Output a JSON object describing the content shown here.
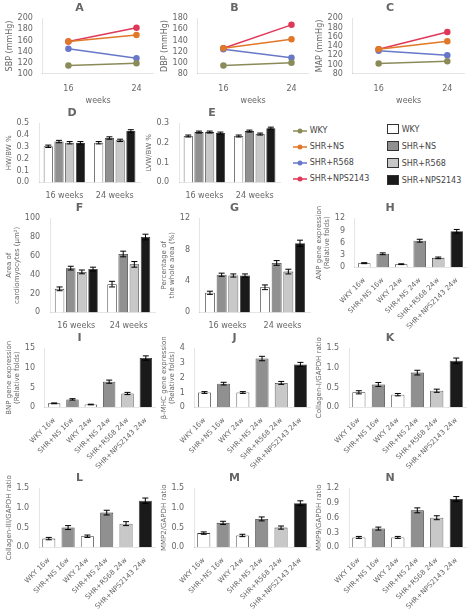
{
  "chart_data": [
    {
      "type": "line",
      "title": "A",
      "xlabel": "weeks",
      "ylabel": "SBP (mmHg)",
      "x": [
        16,
        24
      ],
      "xlim": [
        13,
        26
      ],
      "xticks": [
        16,
        24
      ],
      "ylim": [
        100,
        200
      ],
      "yticks": [
        100,
        120,
        140,
        160,
        180,
        200
      ],
      "grid": false,
      "marker": "circle",
      "legend": "right",
      "series": [
        {
          "name": "WKY",
          "color": "#8B8B5A",
          "values": [
            115,
            119
          ]
        },
        {
          "name": "SHR+NS",
          "color": "#E07828",
          "values": [
            158,
            170
          ]
        },
        {
          "name": "SHR+R568",
          "color": "#6878C8",
          "values": [
            145,
            128
          ]
        },
        {
          "name": "SHR+NPS2143",
          "color": "#E03858",
          "values": [
            158,
            183
          ]
        }
      ]
    },
    {
      "type": "line",
      "title": "B",
      "xlabel": "weeks",
      "ylabel": "DBP (mmHg)",
      "x": [
        16,
        24
      ],
      "xlim": [
        13,
        26
      ],
      "xticks": [
        16,
        24
      ],
      "ylim": [
        80,
        180
      ],
      "yticks": [
        80,
        100,
        120,
        140,
        160,
        180
      ],
      "grid": false,
      "marker": "circle",
      "series": [
        {
          "color": "#8B8B5A",
          "values": [
            95,
            100
          ]
        },
        {
          "color": "#E07828",
          "values": [
            126,
            142
          ]
        },
        {
          "color": "#6878C8",
          "values": [
            124,
            109
          ]
        },
        {
          "color": "#E03858",
          "values": [
            126,
            168
          ]
        }
      ]
    },
    {
      "type": "line",
      "title": "C",
      "xlabel": "weeks",
      "ylabel": "MAP (mmHg)",
      "x": [
        16,
        24
      ],
      "xlim": [
        13,
        26
      ],
      "xticks": [
        16,
        24
      ],
      "ylim": [
        80,
        200
      ],
      "yticks": [
        80,
        100,
        120,
        140,
        160,
        180,
        200
      ],
      "grid": false,
      "marker": "circle",
      "series": [
        {
          "color": "#8B8B5A",
          "values": [
            102,
            107
          ]
        },
        {
          "color": "#E07828",
          "values": [
            133,
            150
          ]
        },
        {
          "color": "#6878C8",
          "values": [
            130,
            120
          ]
        },
        {
          "color": "#E03858",
          "values": [
            133,
            170
          ]
        }
      ]
    },
    {
      "type": "bar",
      "title": "D",
      "ylabel": "HW/BW %",
      "categories": [
        "16 weeks",
        "24 weeks"
      ],
      "ylim": [
        0,
        0.5
      ],
      "yticks": [
        {
          "value": 0,
          "label": "0.0"
        },
        0.1,
        0.2,
        0.3,
        0.4,
        0.5
      ],
      "grid": false,
      "legend": "right",
      "series": [
        {
          "name": "WKY",
          "color": "#FFFFFF",
          "values": [
            0.305,
            0.335
          ],
          "errors": [
            0.01,
            0.01
          ]
        },
        {
          "name": "SHR+NS",
          "color": "#909090",
          "values": [
            0.345,
            0.375
          ],
          "errors": [
            0.01,
            0.01
          ]
        },
        {
          "name": "SHR+R568",
          "color": "#C8C8C8",
          "values": [
            0.335,
            0.355
          ],
          "errors": [
            0.01,
            0.01
          ]
        },
        {
          "name": "SHR+NPS2143",
          "color": "#1A1A1A",
          "values": [
            0.335,
            0.435
          ],
          "errors": [
            0.01,
            0.01
          ]
        }
      ]
    },
    {
      "type": "bar",
      "title": "E",
      "ylabel": "LVW/BW %",
      "categories": [
        "16 weeks",
        "24 weeks"
      ],
      "ylim": [
        0,
        0.3
      ],
      "yticks": [
        {
          "value": 0,
          "label": "0.0"
        },
        0.1,
        0.2,
        0.3
      ],
      "grid": false,
      "series": [
        {
          "color": "#FFFFFF",
          "values": [
            0.235,
            0.235
          ],
          "errors": [
            0.005,
            0.005
          ]
        },
        {
          "color": "#909090",
          "values": [
            0.255,
            0.26
          ],
          "errors": [
            0.005,
            0.005
          ]
        },
        {
          "color": "#C8C8C8",
          "values": [
            0.255,
            0.245
          ],
          "errors": [
            0.005,
            0.005
          ]
        },
        {
          "color": "#1A1A1A",
          "values": [
            0.25,
            0.275
          ],
          "errors": [
            0.005,
            0.005
          ]
        }
      ]
    },
    {
      "type": "bar",
      "title": "F",
      "ylabel": "Area of\ncardiomyocytes (μm²)",
      "categories": [
        "16 weeks",
        "24 weeks"
      ],
      "ylim": [
        0,
        100
      ],
      "yticks": [
        0,
        20,
        40,
        60,
        80,
        100
      ],
      "grid": false,
      "series": [
        {
          "color": "#FFFFFF",
          "values": [
            25,
            30
          ],
          "errors": [
            2,
            3
          ]
        },
        {
          "color": "#909090",
          "values": [
            47,
            62
          ],
          "errors": [
            2,
            3
          ]
        },
        {
          "color": "#C8C8C8",
          "values": [
            43,
            51
          ],
          "errors": [
            2,
            3
          ]
        },
        {
          "color": "#1A1A1A",
          "values": [
            46,
            80
          ],
          "errors": [
            2,
            3
          ]
        }
      ]
    },
    {
      "type": "bar",
      "title": "G",
      "ylabel": "Percentage of\nthe whole area (%)",
      "categories": [
        "16 weeks",
        "24 weeks"
      ],
      "ylim": [
        0,
        12
      ],
      "yticks": [
        0,
        4,
        8,
        12
      ],
      "grid": false,
      "series": [
        {
          "color": "#FFFFFF",
          "values": [
            2.5,
            3.2
          ],
          "errors": [
            0.2,
            0.3
          ]
        },
        {
          "color": "#909090",
          "values": [
            4.8,
            6.3
          ],
          "errors": [
            0.2,
            0.3
          ]
        },
        {
          "color": "#C8C8C8",
          "values": [
            4.7,
            5.2
          ],
          "errors": [
            0.2,
            0.3
          ]
        },
        {
          "color": "#1A1A1A",
          "values": [
            4.7,
            8.8
          ],
          "errors": [
            0.2,
            0.4
          ]
        }
      ]
    },
    {
      "type": "bar",
      "title": "H",
      "ylabel": "ANP gene expression\n(Relative folds)",
      "categories": [
        "WKY 16w",
        "SHR+NS 16w",
        "WKY 24w",
        "SHR+NS 24w",
        "SHR+R568 24w",
        "SHR+NPS2143 24w"
      ],
      "values": [
        1.0,
        3.3,
        0.75,
        6.5,
        2.3,
        8.8
      ],
      "errors": [
        0.12,
        0.22,
        0.1,
        0.35,
        0.2,
        0.45
      ],
      "colors": [
        "#FFFFFF",
        "#909090",
        "#FFFFFF",
        "#909090",
        "#C8C8C8",
        "#1A1A1A"
      ],
      "ylim": [
        0,
        12
      ],
      "yticks": [
        0,
        3,
        6,
        9,
        12
      ],
      "grid": false
    },
    {
      "type": "bar",
      "title": "I",
      "ylabel": "BNP gene expression\n(Relative folds)",
      "categories": [
        "WKY 16w",
        "SHR+NS 16w",
        "WKY 24w",
        "SHR+NS 24w",
        "SHR+R568 24w",
        "SHR+NPS2143 24w"
      ],
      "values": [
        1.0,
        2.0,
        0.7,
        6.5,
        3.5,
        12.5
      ],
      "errors": [
        0.1,
        0.18,
        0.08,
        0.4,
        0.28,
        0.55
      ],
      "colors": [
        "#FFFFFF",
        "#909090",
        "#FFFFFF",
        "#909090",
        "#C8C8C8",
        "#1A1A1A"
      ],
      "ylim": [
        0,
        15
      ],
      "yticks": [
        0,
        5,
        10,
        15
      ],
      "grid": false
    },
    {
      "type": "bar",
      "title": "J",
      "ylabel": "β-MHC gene expression\n(Relative folds)",
      "categories": [
        "WKY 16w",
        "SHR+NS 16w",
        "WKY 24w",
        "SHR+NS 24w",
        "SHR+R568 24w",
        "SHR+NPS2143 24w"
      ],
      "values": [
        1.0,
        1.6,
        1.0,
        3.3,
        1.65,
        2.9
      ],
      "errors": [
        0.06,
        0.09,
        0.06,
        0.15,
        0.1,
        0.14
      ],
      "colors": [
        "#FFFFFF",
        "#909090",
        "#FFFFFF",
        "#909090",
        "#C8C8C8",
        "#1A1A1A"
      ],
      "ylim": [
        0,
        4
      ],
      "yticks": [
        0,
        1,
        2,
        3,
        4
      ],
      "grid": false
    },
    {
      "type": "bar",
      "title": "K",
      "ylabel": "Collagen-I/GAPDH ratio",
      "categories": [
        "WKY 16w",
        "SHR+NS 16w",
        "WKY 24w",
        "SHR+NS 24w",
        "SHR+R568 24w",
        "SHR+NPS2143 24w"
      ],
      "values": [
        0.38,
        0.58,
        0.32,
        0.88,
        0.42,
        1.18
      ],
      "errors": [
        0.04,
        0.05,
        0.03,
        0.06,
        0.04,
        0.07
      ],
      "colors": [
        "#FFFFFF",
        "#909090",
        "#FFFFFF",
        "#909090",
        "#C8C8C8",
        "#1A1A1A"
      ],
      "ylim": [
        0,
        1.5
      ],
      "yticks": [
        {
          "value": 0,
          "label": "0.0"
        },
        0.5,
        {
          "value": 1,
          "label": "1.0"
        },
        1.5
      ],
      "grid": false
    },
    {
      "type": "bar",
      "title": "L",
      "ylabel": "Collagen-III/GAPDH ratio",
      "categories": [
        "WKY 16w",
        "SHR+NS 16w",
        "WKY 24w",
        "SHR+NS 24w",
        "SHR+R568 24w",
        "SHR+NPS2143 24w"
      ],
      "values": [
        0.22,
        0.5,
        0.28,
        0.88,
        0.6,
        1.18
      ],
      "errors": [
        0.03,
        0.05,
        0.03,
        0.06,
        0.05,
        0.07
      ],
      "colors": [
        "#FFFFFF",
        "#909090",
        "#FFFFFF",
        "#909090",
        "#C8C8C8",
        "#1A1A1A"
      ],
      "ylim": [
        0,
        1.5
      ],
      "yticks": [
        {
          "value": 0,
          "label": "0.0"
        },
        0.5,
        {
          "value": 1,
          "label": "1.0"
        },
        1.5
      ],
      "grid": false
    },
    {
      "type": "bar",
      "title": "M",
      "ylabel": "MMP2/GAPDH ratio",
      "categories": [
        "WKY 16w",
        "SHR+NS 16w",
        "WKY 24w",
        "SHR+NS 24w",
        "SHR+R568 24w",
        "SHR+NPS2143 24w"
      ],
      "values": [
        0.36,
        0.62,
        0.3,
        0.72,
        0.5,
        1.12
      ],
      "errors": [
        0.03,
        0.04,
        0.03,
        0.05,
        0.04,
        0.06
      ],
      "colors": [
        "#FFFFFF",
        "#909090",
        "#FFFFFF",
        "#909090",
        "#C8C8C8",
        "#1A1A1A"
      ],
      "ylim": [
        0,
        1.5
      ],
      "yticks": [
        {
          "value": 0,
          "label": "0.0"
        },
        0.5,
        {
          "value": 1,
          "label": "1.0"
        },
        1.5
      ],
      "grid": false
    },
    {
      "type": "bar",
      "title": "N",
      "ylabel": "MMP9/GAPDH ratio",
      "categories": [
        "WKY 16w",
        "SHR+NS 16w",
        "WKY 24w",
        "SHR+NS 24w",
        "SHR+R568 24w",
        "SHR+NPS2143 24w"
      ],
      "values": [
        0.2,
        0.38,
        0.2,
        0.75,
        0.6,
        0.98
      ],
      "errors": [
        0.02,
        0.03,
        0.02,
        0.05,
        0.04,
        0.05
      ],
      "colors": [
        "#FFFFFF",
        "#909090",
        "#FFFFFF",
        "#909090",
        "#C8C8C8",
        "#1A1A1A"
      ],
      "ylim": [
        0,
        1.2
      ],
      "yticks": [
        {
          "value": 0,
          "label": "0.0"
        },
        0.3,
        0.6,
        0.9,
        1.2
      ],
      "grid": false
    }
  ]
}
